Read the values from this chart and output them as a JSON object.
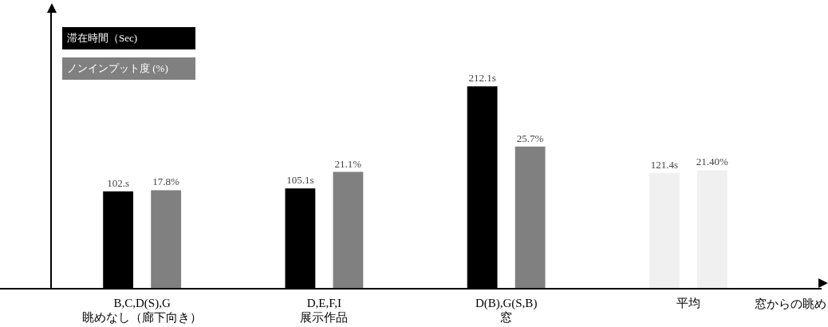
{
  "chart_data": {
    "type": "bar",
    "categories": [
      "B,C,D(S),G\n眺めなし（廊下向き）",
      "D,E,F,I\n展示作品",
      "D(B),G(S,B)\n窓",
      "平均"
    ],
    "series": [
      {
        "name": "滞在時間（Sec)",
        "color": "#000000",
        "colors": [
          "#000000",
          "#000000",
          "#000000",
          "#f0f0f0"
        ],
        "values": [
          102,
          105.1,
          212.1,
          121.4
        ],
        "value_labels": [
          "102.s",
          "105.1s",
          "212.1s",
          "121.4s"
        ]
      },
      {
        "name": "ノンインプット度 (%)",
        "color": "#808080",
        "colors": [
          "#808080",
          "#808080",
          "#808080",
          "#f0f0f0"
        ],
        "values": [
          17.8,
          21.1,
          25.7,
          21.4
        ],
        "value_labels": [
          "17.8%",
          "21.1%",
          "25.7%",
          "21.40%"
        ],
        "axis": "y2"
      }
    ],
    "ylim": [
      0,
      290
    ],
    "y2lim": [
      0,
      50
    ],
    "xlabel": "窓からの眺め",
    "legend": "top left"
  }
}
